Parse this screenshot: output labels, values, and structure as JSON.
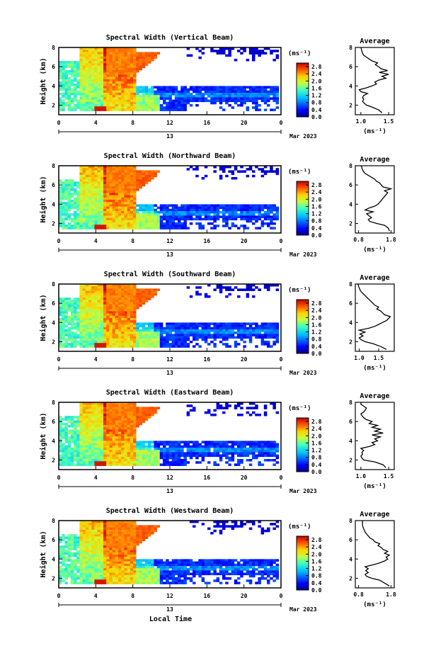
{
  "figure": {
    "xlabel": "Local Time",
    "date_label": "Mar 2023",
    "day_label": "13",
    "ylabel": "Height (km)",
    "colorbar_unit": "(ms⁻¹)",
    "avg_title": "Average",
    "avg_unit": "(ms⁻¹)"
  },
  "chart_data": [
    {
      "type": "heatmap",
      "title": "Spectral Width (Vertical Beam)",
      "x_ticks": [
        "0",
        "4",
        "8",
        "12",
        "16",
        "20",
        "0"
      ],
      "y_ticks": [
        "2",
        "4",
        "6",
        "8"
      ],
      "xlim": [
        0,
        24
      ],
      "ylim": [
        1,
        8
      ],
      "colorbar_ticks": [
        "0.0",
        "0.4",
        "0.8",
        "1.2",
        "1.6",
        "2.0",
        "2.4",
        "2.8"
      ],
      "colorbar_range": [
        0,
        3.0
      ]
    },
    {
      "type": "heatmap",
      "title": "Spectral Width (Northward Beam)",
      "x_ticks": [
        "0",
        "4",
        "8",
        "12",
        "16",
        "20",
        "0"
      ],
      "y_ticks": [
        "2",
        "4",
        "6",
        "8"
      ],
      "xlim": [
        0,
        24
      ],
      "ylim": [
        1,
        8
      ],
      "colorbar_ticks": [
        "0.0",
        "0.4",
        "0.8",
        "1.2",
        "1.6",
        "2.0",
        "2.4",
        "2.8"
      ],
      "colorbar_range": [
        0,
        3.0
      ]
    },
    {
      "type": "heatmap",
      "title": "Spectral Width (Southward Beam)",
      "x_ticks": [
        "0",
        "4",
        "8",
        "12",
        "16",
        "20",
        "0"
      ],
      "y_ticks": [
        "2",
        "4",
        "6",
        "8"
      ],
      "xlim": [
        0,
        24
      ],
      "ylim": [
        1,
        8
      ],
      "colorbar_ticks": [
        "0.0",
        "0.4",
        "0.8",
        "1.2",
        "1.6",
        "2.0",
        "2.4",
        "2.8"
      ],
      "colorbar_range": [
        0,
        3.0
      ]
    },
    {
      "type": "heatmap",
      "title": "Spectral Width (Eastward Beam)",
      "x_ticks": [
        "0",
        "4",
        "8",
        "12",
        "16",
        "20",
        "0"
      ],
      "y_ticks": [
        "2",
        "4",
        "6",
        "8"
      ],
      "xlim": [
        0,
        24
      ],
      "ylim": [
        1,
        8
      ],
      "colorbar_ticks": [
        "0.0",
        "0.4",
        "0.8",
        "1.2",
        "1.6",
        "2.0",
        "2.4",
        "2.8"
      ],
      "colorbar_range": [
        0,
        3.0
      ]
    },
    {
      "type": "heatmap",
      "title": "Spectral Width (Westward Beam)",
      "x_ticks": [
        "0",
        "4",
        "8",
        "12",
        "16",
        "20",
        "0"
      ],
      "y_ticks": [
        "2",
        "4",
        "6",
        "8"
      ],
      "xlim": [
        0,
        24
      ],
      "ylim": [
        1,
        8
      ],
      "colorbar_ticks": [
        "0.0",
        "0.4",
        "0.8",
        "1.2",
        "1.6",
        "2.0",
        "2.4",
        "2.8"
      ],
      "colorbar_range": [
        0,
        3.0
      ]
    },
    {
      "type": "line",
      "title": "Average",
      "xlabel": "(ms⁻¹)",
      "x_ticks": [
        "1.0",
        "1.5"
      ],
      "xlim": [
        0.9,
        1.6
      ],
      "y_ticks": [
        "2",
        "4",
        "6",
        "8"
      ],
      "ylim": [
        1,
        8
      ],
      "profile": {
        "height": [
          1.2,
          1.5,
          1.8,
          2.0,
          2.2,
          2.4,
          2.6,
          2.8,
          3.0,
          3.2,
          3.4,
          3.6,
          3.8,
          4.0,
          4.2,
          4.4,
          4.6,
          4.8,
          5.0,
          5.2,
          5.4,
          5.6,
          5.8,
          6.0,
          6.2,
          6.4,
          6.6,
          6.8,
          7.0,
          7.2,
          7.4,
          7.6,
          7.8,
          8.0
        ],
        "width": [
          1.38,
          1.32,
          1.2,
          1.1,
          1.06,
          1.03,
          1.05,
          1.03,
          1.05,
          1.12,
          1.0,
          0.97,
          1.1,
          1.2,
          1.28,
          1.25,
          1.32,
          1.45,
          1.38,
          1.5,
          1.33,
          1.48,
          1.36,
          1.32,
          1.26,
          1.3,
          1.2,
          1.15,
          1.1,
          1.05,
          1.03,
          1.02,
          1.01,
          1.0
        ]
      }
    },
    {
      "type": "line",
      "title": "Average",
      "xlabel": "(ms⁻¹)",
      "x_ticks": [
        "0.8",
        "1.8"
      ],
      "xlim": [
        0.7,
        1.9
      ],
      "y_ticks": [
        "2",
        "4",
        "6",
        "8"
      ],
      "ylim": [
        1,
        8
      ],
      "profile": {
        "height": [
          1.2,
          1.5,
          1.8,
          2.0,
          2.2,
          2.4,
          2.6,
          2.8,
          3.0,
          3.2,
          3.4,
          3.6,
          3.8,
          4.0,
          4.2,
          4.4,
          4.6,
          4.8,
          5.0,
          5.2,
          5.4,
          5.6,
          5.8,
          6.0,
          6.2,
          6.4,
          6.6,
          6.8,
          7.0,
          7.2,
          7.4,
          7.6,
          7.8,
          8.0
        ],
        "width": [
          1.75,
          1.72,
          1.6,
          1.35,
          1.15,
          1.1,
          1.2,
          1.12,
          1.05,
          1.25,
          1.0,
          1.12,
          1.3,
          1.4,
          1.45,
          1.5,
          1.55,
          1.6,
          1.65,
          1.7,
          1.6,
          1.8,
          1.55,
          1.5,
          1.45,
          1.35,
          1.3,
          1.2,
          1.1,
          1.0,
          0.95,
          0.92,
          0.9,
          0.88
        ]
      }
    },
    {
      "type": "line",
      "title": "Average",
      "xlabel": "(ms⁻¹)",
      "x_ticks": [
        "1.0",
        "1.5"
      ],
      "xlim": [
        0.9,
        1.9
      ],
      "y_ticks": [
        "2",
        "4",
        "6",
        "8"
      ],
      "ylim": [
        1,
        8
      ],
      "profile": {
        "height": [
          1.2,
          1.5,
          1.8,
          2.0,
          2.2,
          2.4,
          2.6,
          2.8,
          3.0,
          3.2,
          3.4,
          3.6,
          3.8,
          4.0,
          4.2,
          4.4,
          4.6,
          4.8,
          5.0,
          5.2,
          5.4,
          5.6,
          5.8,
          6.0,
          6.2,
          6.4,
          6.6,
          6.8,
          7.0,
          7.2,
          7.4,
          7.6,
          7.8,
          8.0
        ],
        "width": [
          1.7,
          1.55,
          1.35,
          1.15,
          1.05,
          1.0,
          1.1,
          1.02,
          1.15,
          1.0,
          1.25,
          1.4,
          1.5,
          1.6,
          1.7,
          1.75,
          1.8,
          1.65,
          1.6,
          1.55,
          1.45,
          1.5,
          1.4,
          1.35,
          1.3,
          1.25,
          1.2,
          1.15,
          1.1,
          1.05,
          1.02,
          1.0,
          0.98,
          0.97
        ]
      }
    },
    {
      "type": "line",
      "title": "Average",
      "xlabel": "(ms⁻¹)",
      "x_ticks": [
        "1.0",
        "1.5"
      ],
      "xlim": [
        0.9,
        1.6
      ],
      "y_ticks": [
        "2",
        "4",
        "6",
        "8"
      ],
      "ylim": [
        1,
        8
      ],
      "profile": {
        "height": [
          1.2,
          1.5,
          1.8,
          2.0,
          2.2,
          2.4,
          2.6,
          2.8,
          3.0,
          3.2,
          3.4,
          3.6,
          3.8,
          4.0,
          4.2,
          4.4,
          4.6,
          4.8,
          5.0,
          5.2,
          5.4,
          5.6,
          5.8,
          6.0,
          6.2,
          6.4,
          6.6,
          6.8,
          7.0,
          7.2,
          7.4,
          7.6,
          7.8,
          8.0
        ],
        "width": [
          1.45,
          1.4,
          1.25,
          1.05,
          1.02,
          1.0,
          1.03,
          1.02,
          1.05,
          1.0,
          1.15,
          1.25,
          1.2,
          1.3,
          1.25,
          1.35,
          1.2,
          1.4,
          1.25,
          1.35,
          1.2,
          1.3,
          1.15,
          1.2,
          1.1,
          1.05,
          1.02,
          1.0,
          1.05,
          1.08,
          1.1,
          1.05,
          1.0,
          1.0
        ]
      }
    },
    {
      "type": "line",
      "title": "Average",
      "xlabel": "(ms⁻¹)",
      "x_ticks": [
        "0.8",
        "1.8"
      ],
      "xlim": [
        0.7,
        1.9
      ],
      "y_ticks": [
        "2",
        "4",
        "6",
        "8"
      ],
      "ylim": [
        1,
        8
      ],
      "profile": {
        "height": [
          1.2,
          1.5,
          1.8,
          2.0,
          2.2,
          2.4,
          2.6,
          2.8,
          3.0,
          3.2,
          3.4,
          3.6,
          3.8,
          4.0,
          4.2,
          4.4,
          4.6,
          4.8,
          5.0,
          5.2,
          5.4,
          5.6,
          5.8,
          6.0,
          6.2,
          6.4,
          6.6,
          6.8,
          7.0,
          7.2,
          7.4,
          7.6,
          7.8,
          8.0
        ],
        "width": [
          1.75,
          1.6,
          1.45,
          1.2,
          1.05,
          1.0,
          1.1,
          1.02,
          1.1,
          1.0,
          1.25,
          1.45,
          1.6,
          1.7,
          1.65,
          1.75,
          1.6,
          1.7,
          1.55,
          1.5,
          1.4,
          1.45,
          1.3,
          1.25,
          1.15,
          1.1,
          1.05,
          1.0,
          0.98,
          0.95,
          0.93,
          0.92,
          0.92,
          0.92
        ]
      }
    }
  ]
}
